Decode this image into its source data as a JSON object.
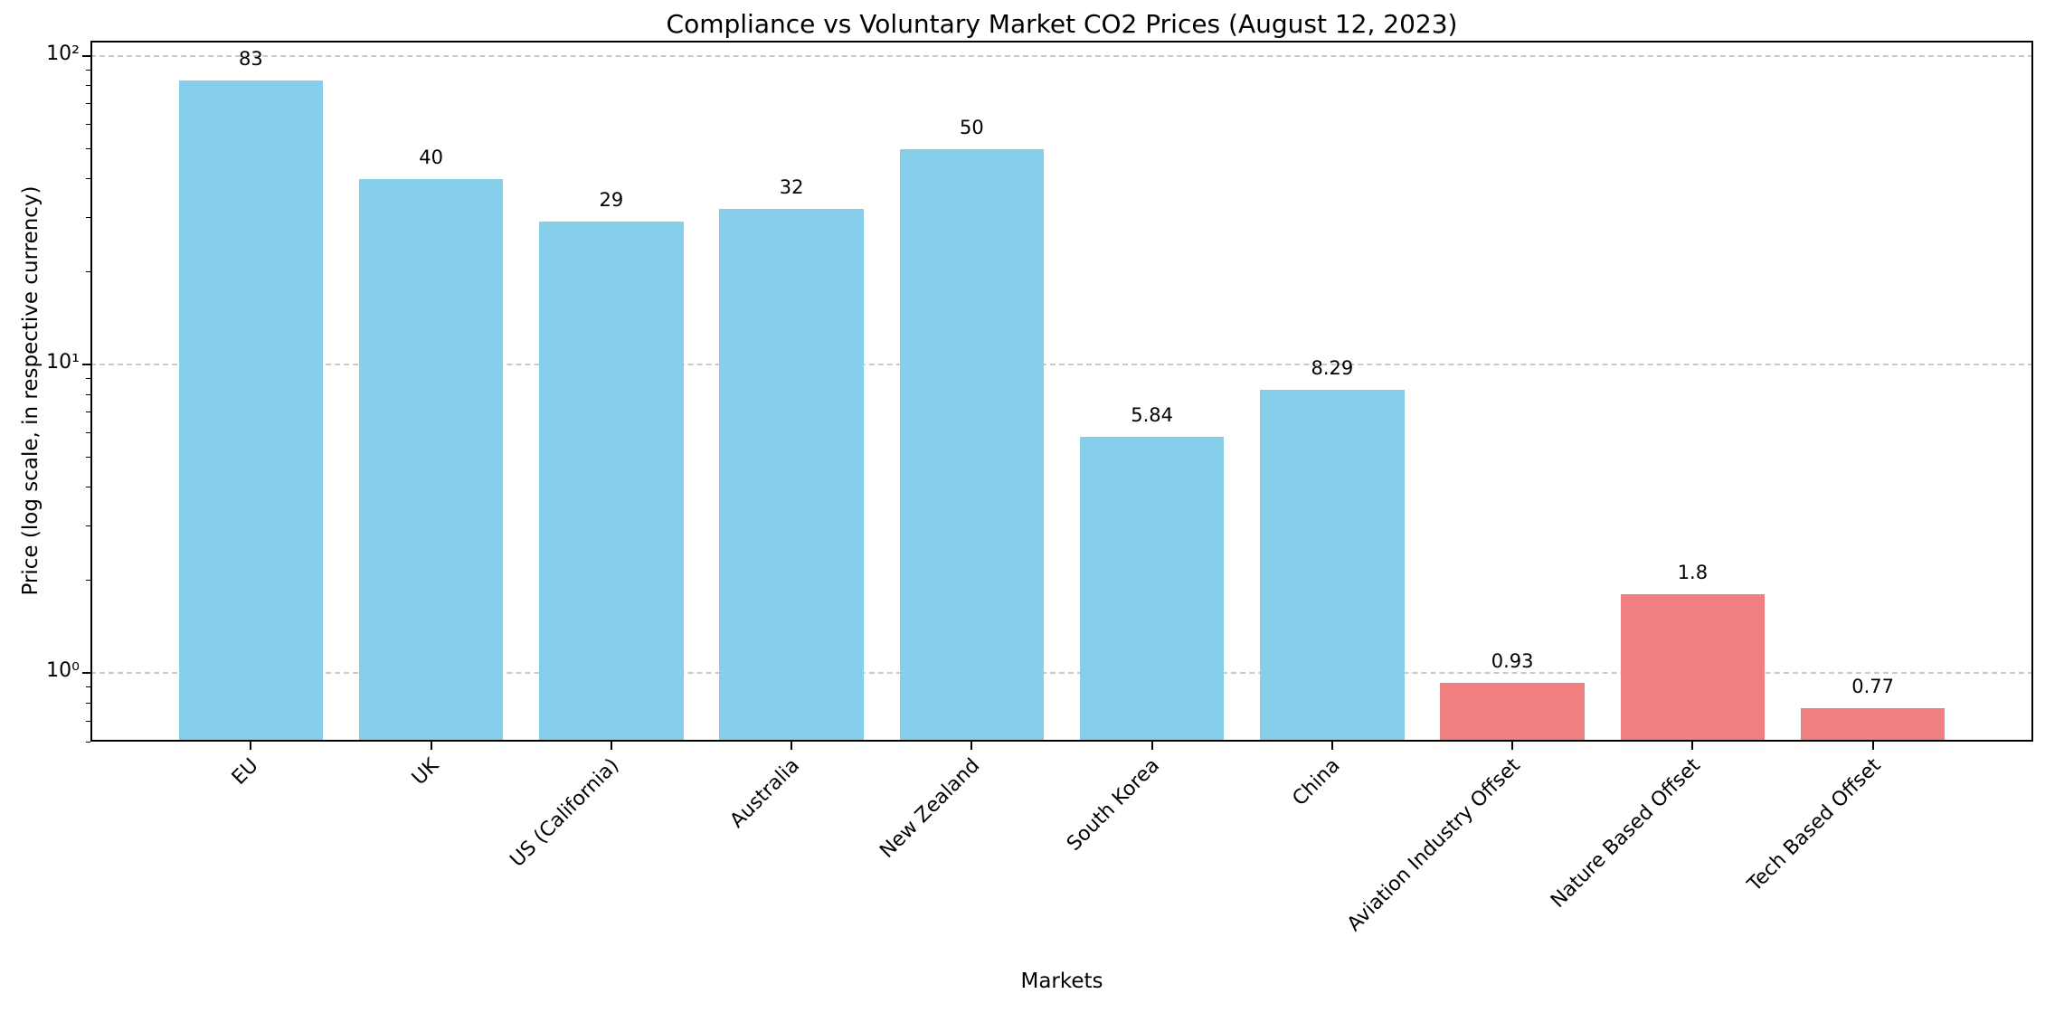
{
  "figure": {
    "background": "#ffffff"
  },
  "chart_data": {
    "type": "bar",
    "title": "Compliance vs Voluntary Market CO2 Prices (August 12, 2023)",
    "xlabel": "Markets",
    "ylabel": "Price (log scale, in respective currency)",
    "yscale": "log",
    "ylim": [
      0.6,
      112
    ],
    "yticks": [
      {
        "value": 1,
        "label": "10⁰"
      },
      {
        "value": 10,
        "label": "10¹"
      },
      {
        "value": 100,
        "label": "10²"
      }
    ],
    "grid": {
      "axis": "y",
      "style": "dashed",
      "color": "#c9c9c9"
    },
    "categories": [
      "EU",
      "UK",
      "US (California)",
      "Australia",
      "New Zealand",
      "South Korea",
      "China",
      "Aviation Industry Offset",
      "Nature Based Offset",
      "Tech Based Offset"
    ],
    "values": [
      83,
      40,
      29,
      32,
      50,
      5.84,
      8.29,
      0.93,
      1.8,
      0.77
    ],
    "value_labels": [
      "83",
      "40",
      "29",
      "32",
      "50",
      "5.84",
      "8.29",
      "0.93",
      "1.8",
      "0.77"
    ],
    "bar_colors": [
      "#87CEEB",
      "#87CEEB",
      "#87CEEB",
      "#87CEEB",
      "#87CEEB",
      "#87CEEB",
      "#87CEEB",
      "#F08080",
      "#F08080",
      "#F08080"
    ],
    "colors": {
      "compliance_market": "#87CEEB",
      "voluntary_offset": "#F08080"
    }
  }
}
